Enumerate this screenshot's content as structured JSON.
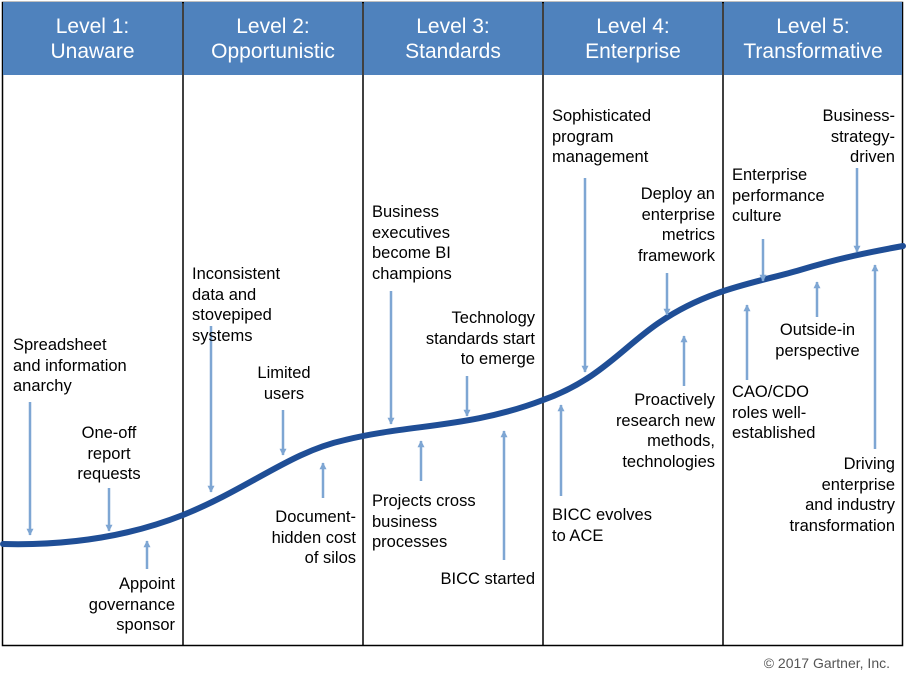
{
  "levels": [
    {
      "line1": "Level 1:",
      "line2": "Unaware"
    },
    {
      "line1": "Level 2:",
      "line2": "Opportunistic"
    },
    {
      "line1": "Level 3:",
      "line2": "Standards"
    },
    {
      "line1": "Level 4:",
      "line2": "Enterprise"
    },
    {
      "line1": "Level 5:",
      "line2": "Transformative"
    }
  ],
  "labels": {
    "spreadsheet": "Spreadsheet\nand information\nanarchy",
    "one_off": "One-off\nreport\nrequests",
    "appoint": "Appoint\ngovernance\nsponsor",
    "inconsistent": "Inconsistent\ndata and\nstovepiped\nsystems",
    "limited": "Limited\nusers",
    "document": "Document-\nhidden cost\nof silos",
    "business_exec": "Business\nexecutives\nbecome BI\nchampions",
    "tech_standards": "Technology\nstandards start\nto emerge",
    "projects_cross": "Projects cross\nbusiness\nprocesses",
    "bicc_started": "BICC started",
    "sophisticated": "Sophisticated\nprogram\nmanagement",
    "deploy": "Deploy an\nenterprise\nmetrics\nframework",
    "proactively": "Proactively\nresearch new\nmethods,\ntechnologies",
    "bicc_evolves": "BICC evolves\nto ACE",
    "enterprise_perf": "Enterprise\nperformance\nculture",
    "business_strategy": "Business-\nstrategy-\ndriven",
    "outside_in": "Outside-in\nperspective",
    "cao_cdo": "CAO/CDO\nroles well-\nestablished",
    "driving": "Driving\nenterprise\nand industry\ntransformation"
  },
  "copyright": "© 2017 Gartner, Inc.",
  "colors": {
    "header": "#4f82bd",
    "curve": "#1f4e96",
    "arrow": "#7ea6d3",
    "grid": "#000000"
  }
}
